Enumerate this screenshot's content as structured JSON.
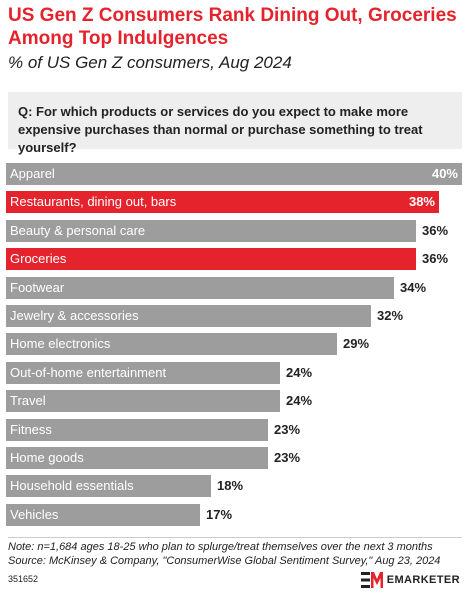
{
  "header": {
    "title": "US Gen Z Consumers Rank Dining Out, Groceries Among Top Indulgences",
    "subtitle": "% of US Gen Z consumers, Aug 2024"
  },
  "question": "Q: For which products or services do you expect to make more expensive purchases than normal or purchase something to treat yourself?",
  "colors": {
    "accent": "#e5232d",
    "bar_default": "#9d9d9d",
    "bar_highlight": "#e5232d",
    "label_text": "#ffffff",
    "value_text": "#222222"
  },
  "chart_data": {
    "type": "bar",
    "orientation": "horizontal",
    "categories": [
      "Apparel",
      "Restaurants, dining out, bars",
      "Beauty & personal care",
      "Groceries",
      "Footwear",
      "Jewelry & accessories",
      "Home electronics",
      "Out-of-home entertainment",
      "Travel",
      "Fitness",
      "Home goods",
      "Household essentials",
      "Vehicles"
    ],
    "values": [
      40,
      38,
      36,
      36,
      34,
      32,
      29,
      24,
      24,
      23,
      23,
      18,
      17
    ],
    "value_labels": [
      "40%",
      "38%",
      "36%",
      "36%",
      "34%",
      "32%",
      "29%",
      "24%",
      "24%",
      "23%",
      "23%",
      "18%",
      "17%"
    ],
    "highlighted": [
      false,
      true,
      false,
      true,
      false,
      false,
      false,
      false,
      false,
      false,
      false,
      false,
      false
    ],
    "unit": "%",
    "xlim": [
      0,
      40
    ],
    "grid": false,
    "legend": "none"
  },
  "footer": {
    "note": "Note: n=1,684 ages 18-25 who plan to splurge/treat themselves over the next 3 months",
    "source": "Source: McKinsey & Company, \"ConsumerWise Global Sentiment Survey,\" Aug 23, 2024",
    "chart_id": "351652",
    "logo_text": "EMARKETER"
  }
}
